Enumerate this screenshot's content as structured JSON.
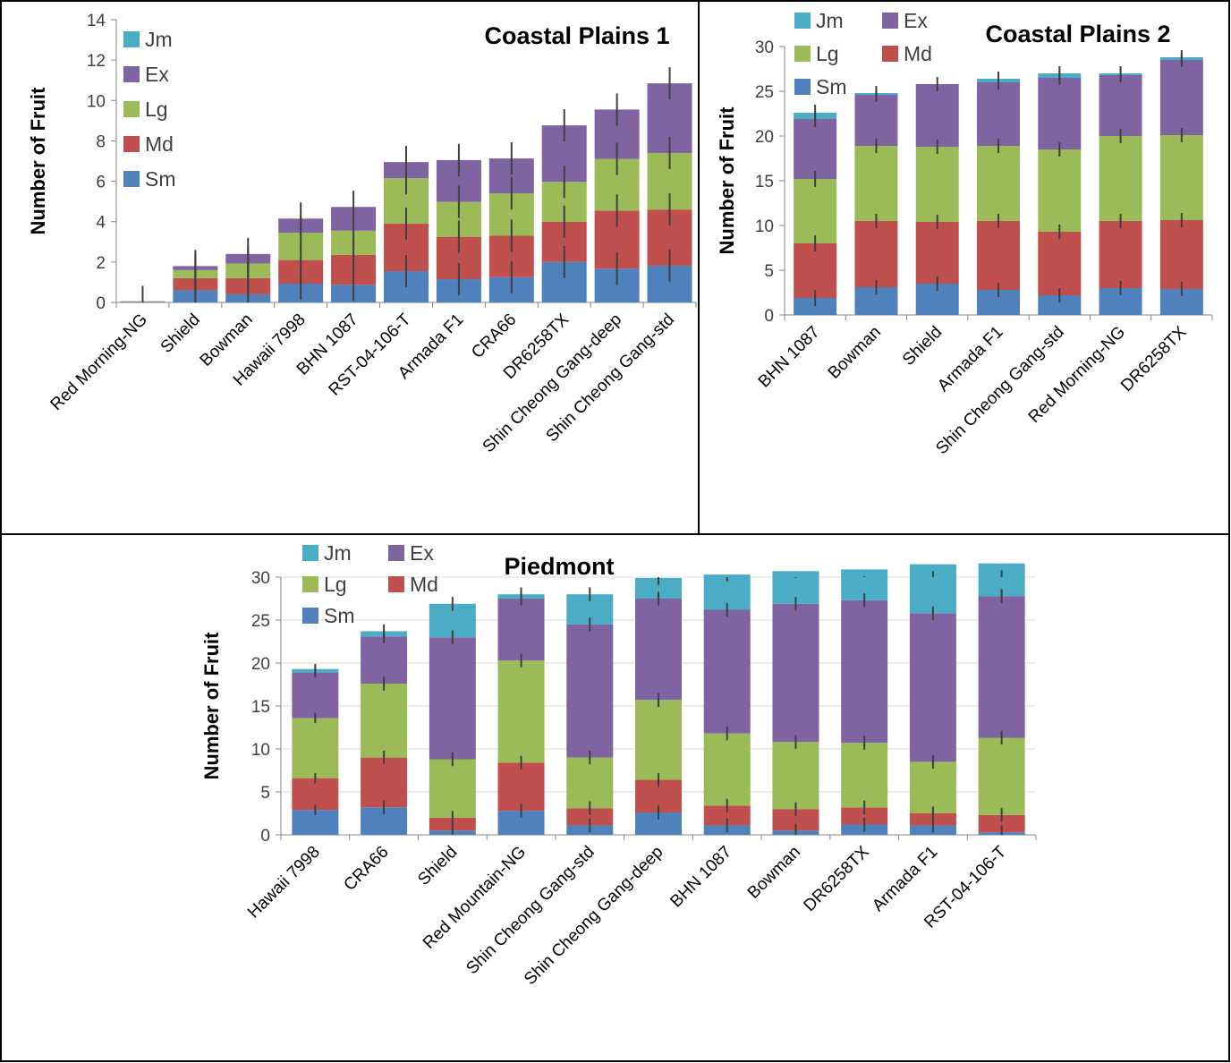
{
  "colors": {
    "Sm": "#4f81bd",
    "Md": "#c0504d",
    "Lg": "#9bbb59",
    "Ex": "#8064a2",
    "Jm": "#4bacc6"
  },
  "chart_data": [
    {
      "type": "bar",
      "stacked": true,
      "title": "Coastal Plains 1",
      "ylabel": "Number of Fruit",
      "xlabel": "",
      "ylim": [
        0,
        14
      ],
      "yticks": [
        0,
        2,
        4,
        6,
        8,
        10,
        12,
        14
      ],
      "grid": false,
      "legend": "top-left",
      "categories": [
        "Red Morning-NG",
        "Shield",
        "Bowman",
        "Hawaii 7998",
        "BHN 1087",
        "RST-04-106-T",
        "Armada F1",
        "CRA66",
        "DR6258TX",
        "Shin Cheong Gang-deep",
        "Shin Cheong Gang-std"
      ],
      "series": [
        {
          "name": "Sm",
          "values": [
            0.02,
            0.6,
            0.4,
            0.93,
            0.87,
            1.55,
            1.15,
            1.25,
            2.0,
            1.67,
            1.82
          ]
        },
        {
          "name": "Md",
          "values": [
            0.02,
            0.6,
            0.8,
            1.17,
            1.48,
            2.35,
            2.1,
            2.05,
            2.0,
            2.88,
            2.78
          ]
        },
        {
          "name": "Lg",
          "values": [
            0.01,
            0.4,
            0.73,
            1.35,
            1.2,
            2.25,
            1.73,
            2.1,
            1.97,
            2.56,
            2.8
          ]
        },
        {
          "name": "Ex",
          "values": [
            0.01,
            0.2,
            0.47,
            0.7,
            1.18,
            0.8,
            2.07,
            1.73,
            2.8,
            2.44,
            3.45
          ]
        },
        {
          "name": "Jm",
          "values": [
            0,
            0,
            0,
            0,
            0,
            0,
            0,
            0,
            0,
            0,
            0
          ]
        }
      ],
      "error_bars": [
        0.8,
        0.8,
        0.8,
        0.8,
        0.8,
        0.8,
        0.8,
        0.8,
        0.8,
        0.8,
        0.8
      ]
    },
    {
      "type": "bar",
      "stacked": true,
      "title": "Coastal Plains 2",
      "ylabel": "Number of Fruit",
      "xlabel": "",
      "ylim": [
        0,
        30
      ],
      "yticks": [
        0,
        5,
        10,
        15,
        20,
        25,
        30
      ],
      "grid": false,
      "legend": "top-left",
      "categories": [
        "BHN 1087",
        "Bowman",
        "Shield",
        "Armada F1",
        "Shin Cheong Gang-std",
        "Red Morning-NG",
        "DR6258TX"
      ],
      "series": [
        {
          "name": "Sm",
          "values": [
            1.9,
            3.1,
            3.5,
            2.8,
            2.2,
            3.0,
            2.9
          ]
        },
        {
          "name": "Md",
          "values": [
            6.1,
            7.4,
            6.9,
            7.7,
            7.1,
            7.5,
            7.7
          ]
        },
        {
          "name": "Lg",
          "values": [
            7.2,
            8.4,
            8.4,
            8.4,
            9.2,
            9.5,
            9.5
          ]
        },
        {
          "name": "Ex",
          "values": [
            6.7,
            5.7,
            7.0,
            7.1,
            8.0,
            6.8,
            8.4
          ]
        },
        {
          "name": "Jm",
          "values": [
            0.7,
            0.2,
            0.0,
            0.4,
            0.5,
            0.2,
            0.3
          ]
        }
      ],
      "error_bars": [
        0.9,
        0.8,
        0.8,
        0.8,
        0.8,
        0.8,
        0.8
      ]
    },
    {
      "type": "bar",
      "stacked": true,
      "title": "Piedmont",
      "ylabel": "Number of Fruit",
      "xlabel": "",
      "ylim": [
        0,
        30
      ],
      "yticks": [
        0,
        5,
        10,
        15,
        20,
        25,
        30
      ],
      "grid": true,
      "legend": "top-left",
      "categories": [
        "Hawaii 7998",
        "CRA66",
        "Shield",
        "Red Mountain-NG",
        "Shin Cheong Gang-std",
        "Shin Cheong Gang-deep",
        "BHN 1087",
        "Bowman",
        "DR6258TX",
        "Armada F1",
        "RST-04-106-T"
      ],
      "series": [
        {
          "name": "Sm",
          "values": [
            2.9,
            3.2,
            0.5,
            2.8,
            1.1,
            2.6,
            1.1,
            0.5,
            1.2,
            1.1,
            0.3
          ]
        },
        {
          "name": "Md",
          "values": [
            3.7,
            5.8,
            1.5,
            5.6,
            2.0,
            3.8,
            2.3,
            2.5,
            2.0,
            1.4,
            2.0
          ]
        },
        {
          "name": "Lg",
          "values": [
            7.0,
            8.6,
            6.8,
            11.9,
            5.9,
            9.3,
            8.4,
            7.8,
            7.5,
            6.0,
            9.0
          ]
        },
        {
          "name": "Ex",
          "values": [
            5.3,
            5.5,
            14.2,
            7.2,
            15.5,
            11.8,
            14.4,
            16.1,
            16.6,
            17.3,
            16.5
          ]
        },
        {
          "name": "Jm",
          "values": [
            0.4,
            0.6,
            3.9,
            0.5,
            3.5,
            2.4,
            4.1,
            3.8,
            3.6,
            5.7,
            3.8
          ]
        }
      ],
      "error_bars": [
        0.6,
        0.8,
        0.8,
        0.8,
        0.8,
        0.8,
        0.8,
        0.8,
        0.8,
        0.8,
        0.8
      ]
    }
  ]
}
